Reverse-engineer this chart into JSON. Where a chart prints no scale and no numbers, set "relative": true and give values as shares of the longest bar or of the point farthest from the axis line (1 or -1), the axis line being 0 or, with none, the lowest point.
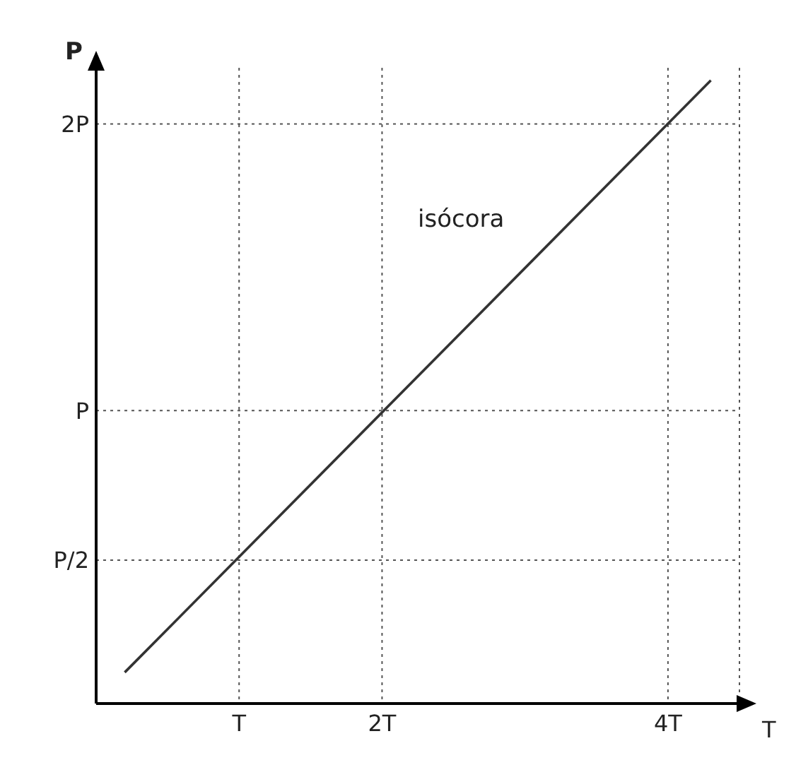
{
  "chart_data": {
    "type": "line",
    "xlabel": "T",
    "ylabel": "P",
    "relative": true,
    "x": [
      0.2,
      4.3
    ],
    "series": [
      {
        "color": "#333333",
        "values": [
          0.05,
          1
        ]
      }
    ],
    "xlim": [
      0,
      4.5
    ],
    "xticks": [
      {
        "value": 1,
        "label": "T"
      },
      {
        "value": 2,
        "label": "2T"
      },
      {
        "value": 4,
        "label": "4T"
      }
    ],
    "ref_lines": [
      {
        "axis": "y",
        "value": 0.23,
        "label": "P/2",
        "color": "#555555",
        "line_style": "dotted"
      },
      {
        "axis": "y",
        "value": 0.47,
        "label": "P",
        "color": "#555555",
        "line_style": "dotted"
      },
      {
        "axis": "y",
        "value": 0.93,
        "label": "2P",
        "color": "#555555",
        "line_style": "dotted"
      }
    ],
    "grid": "x",
    "marker": "none",
    "line_style": "solid",
    "legend": false,
    "annotations": [
      "isócora"
    ]
  }
}
